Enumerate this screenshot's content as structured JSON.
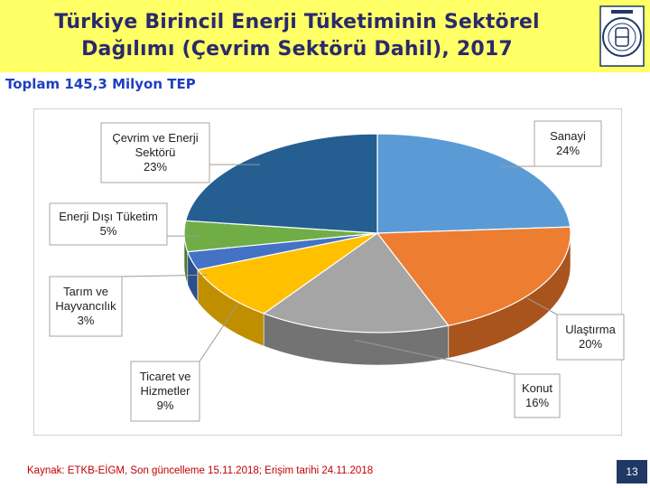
{
  "header": {
    "title_line1": "Türkiye Birincil Enerji Tüketiminin Sektörel",
    "title_line2": "Dağılımı (Çevrim Sektörü Dahil), 2017",
    "subtitle": "Toplam 145,3 Milyon TEP",
    "logo_icon": "emblem-icon"
  },
  "chart_data": {
    "type": "pie",
    "title": "",
    "categories": [
      "Sanayi",
      "Ulaştırma",
      "Konut",
      "Ticaret ve Hizmetler",
      "Tarım ve Hayvancılık",
      "Enerji Dışı Tüketim",
      "Çevrim ve Enerji Sektörü"
    ],
    "values": [
      24,
      20,
      16,
      9,
      3,
      5,
      23
    ],
    "unit": "%",
    "colors": [
      "#5b9bd5",
      "#ed7d31",
      "#a5a5a5",
      "#ffc000",
      "#4472c4",
      "#70ad47",
      "#255e91"
    ],
    "side_colors": [
      "#3e6f9c",
      "#a9541d",
      "#737373",
      "#c08f00",
      "#2d4f8c",
      "#4c7a30",
      "#173c5e"
    ],
    "labels": [
      {
        "lines": [
          "Sanayi",
          "24%"
        ]
      },
      {
        "lines": [
          "Ulaştırma",
          "20%"
        ]
      },
      {
        "lines": [
          "Konut",
          "16%"
        ]
      },
      {
        "lines": [
          "Ticaret ve",
          "Hizmetler",
          "9%"
        ]
      },
      {
        "lines": [
          "Tarım ve",
          "Hayvancılık",
          "3%"
        ]
      },
      {
        "lines": [
          "Enerji Dışı Tüketim",
          "5%"
        ]
      },
      {
        "lines": [
          "Çevrim ve Enerji",
          "Sektörü",
          "23%"
        ]
      }
    ]
  },
  "footer": {
    "source": "Kaynak: ETKB-EİGM, Son güncelleme 15.11.2018; Erişim tarihi 24.11.2018",
    "page_number": "13"
  }
}
